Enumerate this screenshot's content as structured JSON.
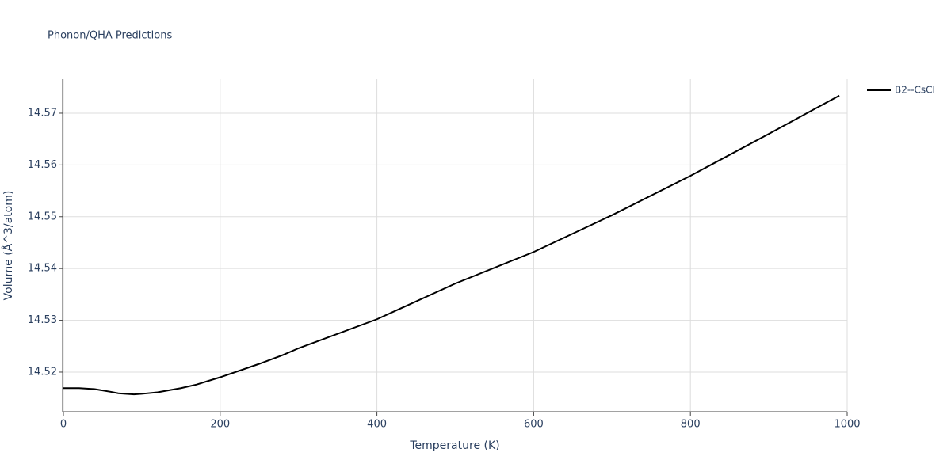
{
  "chart_data": {
    "type": "line",
    "title": "Phonon/QHA Predictions",
    "x_label": "Temperature (K)",
    "y_label": "Volume (Å^3/atom)",
    "x": [
      0,
      20,
      40,
      60,
      70,
      90,
      100,
      120,
      150,
      170,
      200,
      250,
      280,
      300,
      400,
      500,
      600,
      700,
      800,
      900,
      990
    ],
    "series": [
      {
        "name": "B2--CsCl",
        "color": "#000000",
        "values": [
          14.5169,
          14.5169,
          14.5167,
          14.5162,
          14.5159,
          14.5157,
          14.5158,
          14.5161,
          14.5169,
          14.5176,
          14.519,
          14.5216,
          14.5233,
          14.5246,
          14.5302,
          14.5371,
          14.5432,
          14.5503,
          14.5579,
          14.566,
          14.5734
        ]
      }
    ],
    "xlim": [
      0,
      1000
    ],
    "xticks": [
      0,
      200,
      400,
      600,
      800,
      1000
    ],
    "ylim": [
      14.51235,
      14.57657
    ],
    "yticks": [
      14.52,
      14.53,
      14.54,
      14.55,
      14.56,
      14.57
    ],
    "grid": true,
    "legend": "right"
  }
}
